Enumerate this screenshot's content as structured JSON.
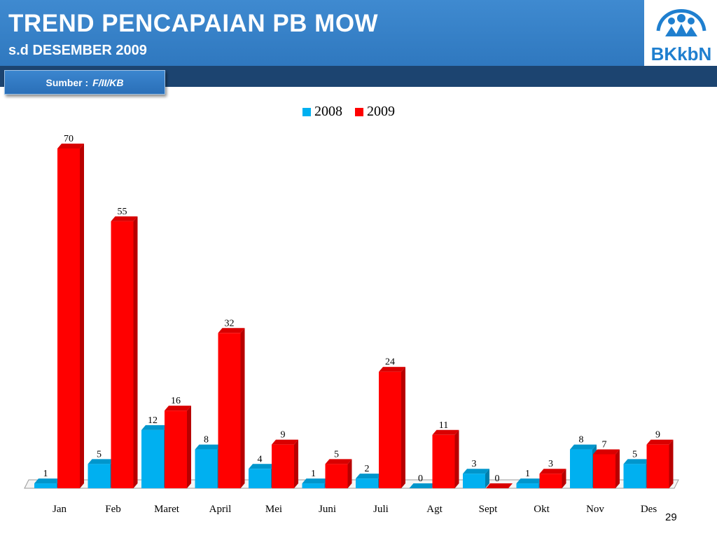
{
  "header": {
    "title": "TREND PENCAPAIAN PB MOW",
    "subtitle": "s.d  DESEMBER  2009"
  },
  "source": {
    "label": "Sumber :",
    "value": "F/II/KB"
  },
  "logo": {
    "text": "BKkbN",
    "icon": "family-logo-icon"
  },
  "page_number": "29",
  "colors": {
    "header": "#3a84cb",
    "band": "#1c4470",
    "series_2008": "#00b0f0",
    "series_2009": "#ff0000"
  },
  "chart_data": {
    "type": "bar",
    "title": "",
    "xlabel": "",
    "ylabel": "",
    "legend_position": "top",
    "grid": false,
    "ylim": [
      0,
      70
    ],
    "categories": [
      "Jan",
      "Feb",
      "Maret",
      "April",
      "Mei",
      "Juni",
      "Juli",
      "Agt",
      "Sept",
      "Okt",
      "Nov",
      "Des"
    ],
    "series": [
      {
        "name": "2008",
        "color": "#00b0f0",
        "values": [
          1,
          5,
          12,
          8,
          4,
          1,
          2,
          0,
          3,
          1,
          8,
          5
        ]
      },
      {
        "name": "2009",
        "color": "#ff0000",
        "values": [
          70,
          55,
          16,
          32,
          9,
          5,
          24,
          11,
          0,
          3,
          7,
          9
        ]
      }
    ]
  }
}
